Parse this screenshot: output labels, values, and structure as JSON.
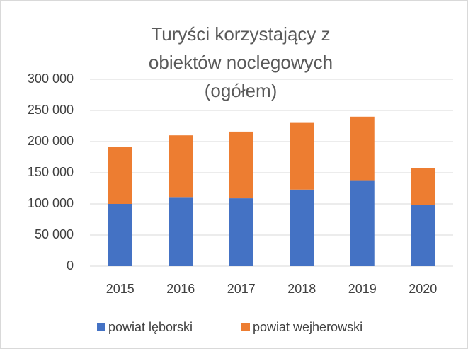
{
  "chart_data": {
    "type": "stacked_bar",
    "title": "Turyści korzystający z obiektów noclegowych (ogółem)",
    "categories": [
      "2015",
      "2016",
      "2017",
      "2018",
      "2019",
      "2020"
    ],
    "series": [
      {
        "name": "powiat lęborski",
        "color": "#4472c4",
        "values": [
          100000,
          111000,
          109000,
          123000,
          138000,
          98000
        ]
      },
      {
        "name": "powiat wejherowski",
        "color": "#ed7d31",
        "values": [
          91000,
          99000,
          107000,
          107000,
          102000,
          59000
        ]
      }
    ],
    "ylim": [
      0,
      300000
    ],
    "yticks": [
      0,
      {
        "value": 50000,
        "label": "50 000"
      },
      {
        "value": 100000,
        "label": "100 000"
      },
      {
        "value": 150000,
        "label": "150 000"
      },
      {
        "value": 200000,
        "label": "200 000"
      },
      {
        "value": 250000,
        "label": "250 000"
      },
      {
        "value": 300000,
        "label": "300 000"
      }
    ],
    "grid": true,
    "legend": "bottom"
  }
}
